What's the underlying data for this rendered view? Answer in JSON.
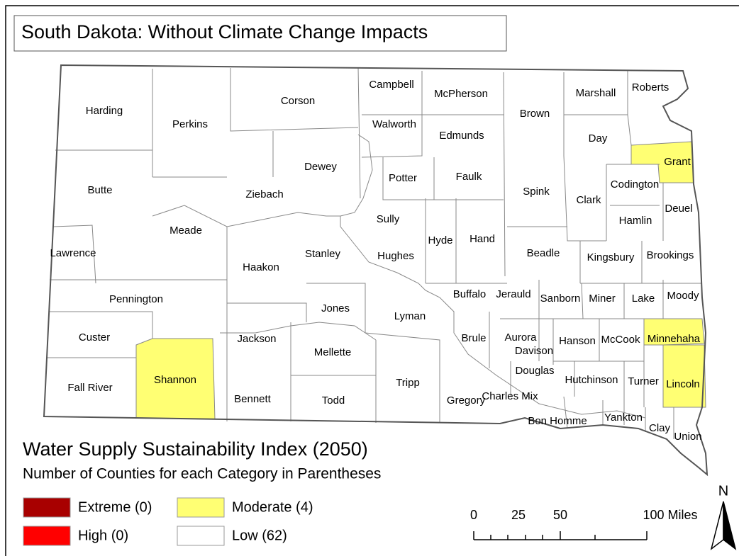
{
  "title": "South Dakota: Without Climate Change Impacts",
  "counties": [
    {
      "name": "Harding",
      "color": "#ffffff"
    },
    {
      "name": "Perkins",
      "color": "#ffffff"
    },
    {
      "name": "Corson",
      "color": "#ffffff"
    },
    {
      "name": "Campbell",
      "color": "#ffffff"
    },
    {
      "name": "McPherson",
      "color": "#ffffff"
    },
    {
      "name": "Brown",
      "color": "#ffffff"
    },
    {
      "name": "Marshall",
      "color": "#ffffff"
    },
    {
      "name": "Roberts",
      "color": "#ffffff"
    },
    {
      "name": "Walworth",
      "color": "#ffffff"
    },
    {
      "name": "Edmunds",
      "color": "#ffffff"
    },
    {
      "name": "Day",
      "color": "#ffffff"
    },
    {
      "name": "Grant",
      "color": "#ffff73"
    },
    {
      "name": "Dewey",
      "color": "#ffffff"
    },
    {
      "name": "Potter",
      "color": "#ffffff"
    },
    {
      "name": "Faulk",
      "color": "#ffffff"
    },
    {
      "name": "Butte",
      "color": "#ffffff"
    },
    {
      "name": "Ziebach",
      "color": "#ffffff"
    },
    {
      "name": "Spink",
      "color": "#ffffff"
    },
    {
      "name": "Clark",
      "color": "#ffffff"
    },
    {
      "name": "Codington",
      "color": "#ffffff"
    },
    {
      "name": "Deuel",
      "color": "#ffffff"
    },
    {
      "name": "Hamlin",
      "color": "#ffffff"
    },
    {
      "name": "Sully",
      "color": "#ffffff"
    },
    {
      "name": "Meade",
      "color": "#ffffff"
    },
    {
      "name": "Hyde",
      "color": "#ffffff"
    },
    {
      "name": "Hand",
      "color": "#ffffff"
    },
    {
      "name": "Lawrence",
      "color": "#ffffff"
    },
    {
      "name": "Stanley",
      "color": "#ffffff"
    },
    {
      "name": "Hughes",
      "color": "#ffffff"
    },
    {
      "name": "Beadle",
      "color": "#ffffff"
    },
    {
      "name": "Kingsbury",
      "color": "#ffffff"
    },
    {
      "name": "Brookings",
      "color": "#ffffff"
    },
    {
      "name": "Haakon",
      "color": "#ffffff"
    },
    {
      "name": "Pennington",
      "color": "#ffffff"
    },
    {
      "name": "Buffalo",
      "color": "#ffffff"
    },
    {
      "name": "Jerauld",
      "color": "#ffffff"
    },
    {
      "name": "Sanborn",
      "color": "#ffffff"
    },
    {
      "name": "Miner",
      "color": "#ffffff"
    },
    {
      "name": "Lake",
      "color": "#ffffff"
    },
    {
      "name": "Moody",
      "color": "#ffffff"
    },
    {
      "name": "Jones",
      "color": "#ffffff"
    },
    {
      "name": "Lyman",
      "color": "#ffffff"
    },
    {
      "name": "Custer",
      "color": "#ffffff"
    },
    {
      "name": "Jackson",
      "color": "#ffffff"
    },
    {
      "name": "Brule",
      "color": "#ffffff"
    },
    {
      "name": "Aurora",
      "color": "#ffffff"
    },
    {
      "name": "Davison",
      "color": "#ffffff"
    },
    {
      "name": "Hanson",
      "color": "#ffffff"
    },
    {
      "name": "McCook",
      "color": "#ffffff"
    },
    {
      "name": "Minnehaha",
      "color": "#ffff73"
    },
    {
      "name": "Mellette",
      "color": "#ffffff"
    },
    {
      "name": "Shannon",
      "color": "#ffff73"
    },
    {
      "name": "Fall River",
      "color": "#ffffff"
    },
    {
      "name": "Bennett",
      "color": "#ffffff"
    },
    {
      "name": "Todd",
      "color": "#ffffff"
    },
    {
      "name": "Tripp",
      "color": "#ffffff"
    },
    {
      "name": "Gregory",
      "color": "#ffffff"
    },
    {
      "name": "Charles Mix",
      "color": "#ffffff"
    },
    {
      "name": "Douglas",
      "color": "#ffffff"
    },
    {
      "name": "Hutchinson",
      "color": "#ffffff"
    },
    {
      "name": "Turner",
      "color": "#ffffff"
    },
    {
      "name": "Lincoln",
      "color": "#ffff73"
    },
    {
      "name": "Bon Homme",
      "color": "#ffffff"
    },
    {
      "name": "Yankton",
      "color": "#ffffff"
    },
    {
      "name": "Clay",
      "color": "#ffffff"
    },
    {
      "name": "Union",
      "color": "#ffffff"
    }
  ],
  "legend": {
    "title": "Water Supply Sustainability Index (2050)",
    "subtitle": "Number of Counties for each Category in Parentheses",
    "items": [
      {
        "label": "Extreme (0)",
        "color": "#a80000"
      },
      {
        "label": "High (0)",
        "color": "#ff0000"
      },
      {
        "label": "Moderate (4)",
        "color": "#ffff73"
      },
      {
        "label": "Low (62)",
        "color": "#ffffff"
      }
    ]
  },
  "scale_bar": {
    "labels": [
      "0",
      "25",
      "50",
      "100 Miles"
    ]
  },
  "north_arrow": "N"
}
